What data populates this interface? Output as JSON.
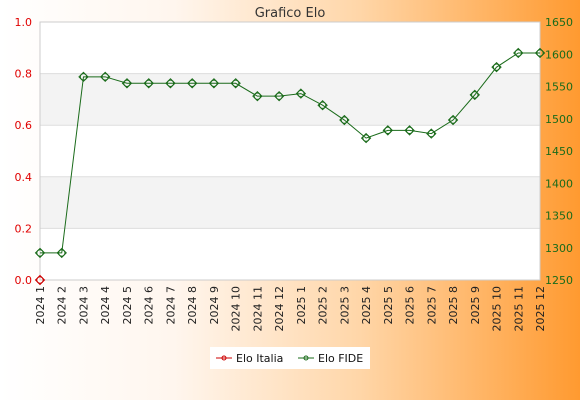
{
  "chart_data": {
    "type": "line",
    "title": "Grafico Elo",
    "categories": [
      "2024 1",
      "2024 2",
      "2024 3",
      "2024 4",
      "2024 5",
      "2024 6",
      "2024 7",
      "2024 8",
      "2024 9",
      "2024 10",
      "2024 11",
      "2024 12",
      "2025 1",
      "2025 2",
      "2025 3",
      "2025 4",
      "2025 5",
      "2025 6",
      "2025 7",
      "2025 8",
      "2025 9",
      "2025 10",
      "2025 11",
      "2025 12"
    ],
    "y_left": {
      "ylim": [
        0,
        1
      ],
      "ticks": [
        "0.0",
        "0.2",
        "0.4",
        "0.6",
        "0.8",
        "1.0"
      ],
      "color": "#e00000"
    },
    "y_right": {
      "ylim": [
        1250,
        1650
      ],
      "ticks": [
        "1250",
        "1300",
        "1350",
        "1400",
        "1450",
        "1500",
        "1550",
        "1600",
        "1650"
      ],
      "color": "#1a6b1a"
    },
    "series": [
      {
        "name": "Elo Italia",
        "axis": "left",
        "color": "#cc0000",
        "values": [
          0,
          null,
          null,
          null,
          null,
          null,
          null,
          null,
          null,
          null,
          null,
          null,
          null,
          null,
          null,
          null,
          null,
          null,
          null,
          null,
          null,
          null,
          null,
          null
        ]
      },
      {
        "name": "Elo FIDE",
        "axis": "right",
        "color": "#1a6b1a",
        "values": [
          1292,
          1292,
          1565,
          1565,
          1555,
          1555,
          1555,
          1555,
          1555,
          1555,
          1535,
          1535,
          1539,
          1521,
          1498,
          1470,
          1482,
          1482,
          1477,
          1498,
          1537,
          1580,
          1602,
          1602
        ]
      }
    ],
    "grid": true,
    "legend": "bottom-center"
  }
}
